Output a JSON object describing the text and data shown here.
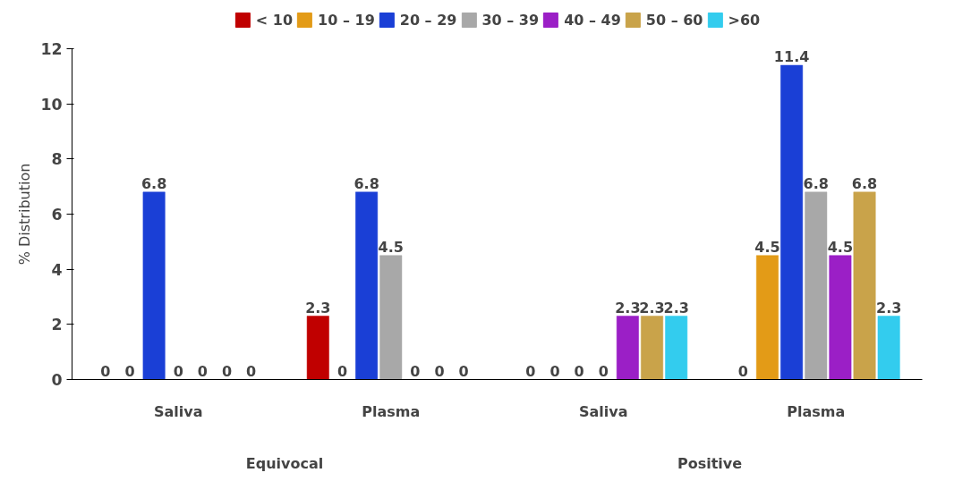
{
  "chart_data": {
    "type": "bar",
    "ylabel": "% Distribution",
    "categories": [
      "Saliva",
      "Plasma",
      "Saliva",
      "Plasma"
    ],
    "annotations": [
      "Equivocal",
      "Positive"
    ],
    "series": [
      {
        "name": "< 10",
        "color": "#c00000",
        "values": [
          0,
          2.3,
          0,
          0
        ]
      },
      {
        "name": "10 – 19",
        "color": "#e39b17",
        "values": [
          0,
          0,
          0,
          4.5
        ]
      },
      {
        "name": "20 – 29",
        "color": "#1a3fd6",
        "values": [
          6.8,
          6.8,
          0,
          11.4
        ]
      },
      {
        "name": "30 – 39",
        "color": "#a8a8a8",
        "values": [
          0,
          4.5,
          0,
          6.8
        ]
      },
      {
        "name": "40 – 49",
        "color": "#9b1fc6",
        "values": [
          0,
          0,
          2.3,
          4.5
        ]
      },
      {
        "name": "50 – 60",
        "color": "#c9a34a",
        "values": [
          0,
          0,
          2.3,
          6.8
        ]
      },
      {
        "name": ">60",
        "color": "#33ccee",
        "values": [
          0,
          0,
          2.3,
          2.3
        ]
      }
    ],
    "ylim": [
      0,
      12
    ],
    "yticks": [
      0,
      2,
      4,
      6,
      8,
      10,
      12
    ],
    "data_labels": true,
    "grid": false,
    "legend": "top"
  }
}
